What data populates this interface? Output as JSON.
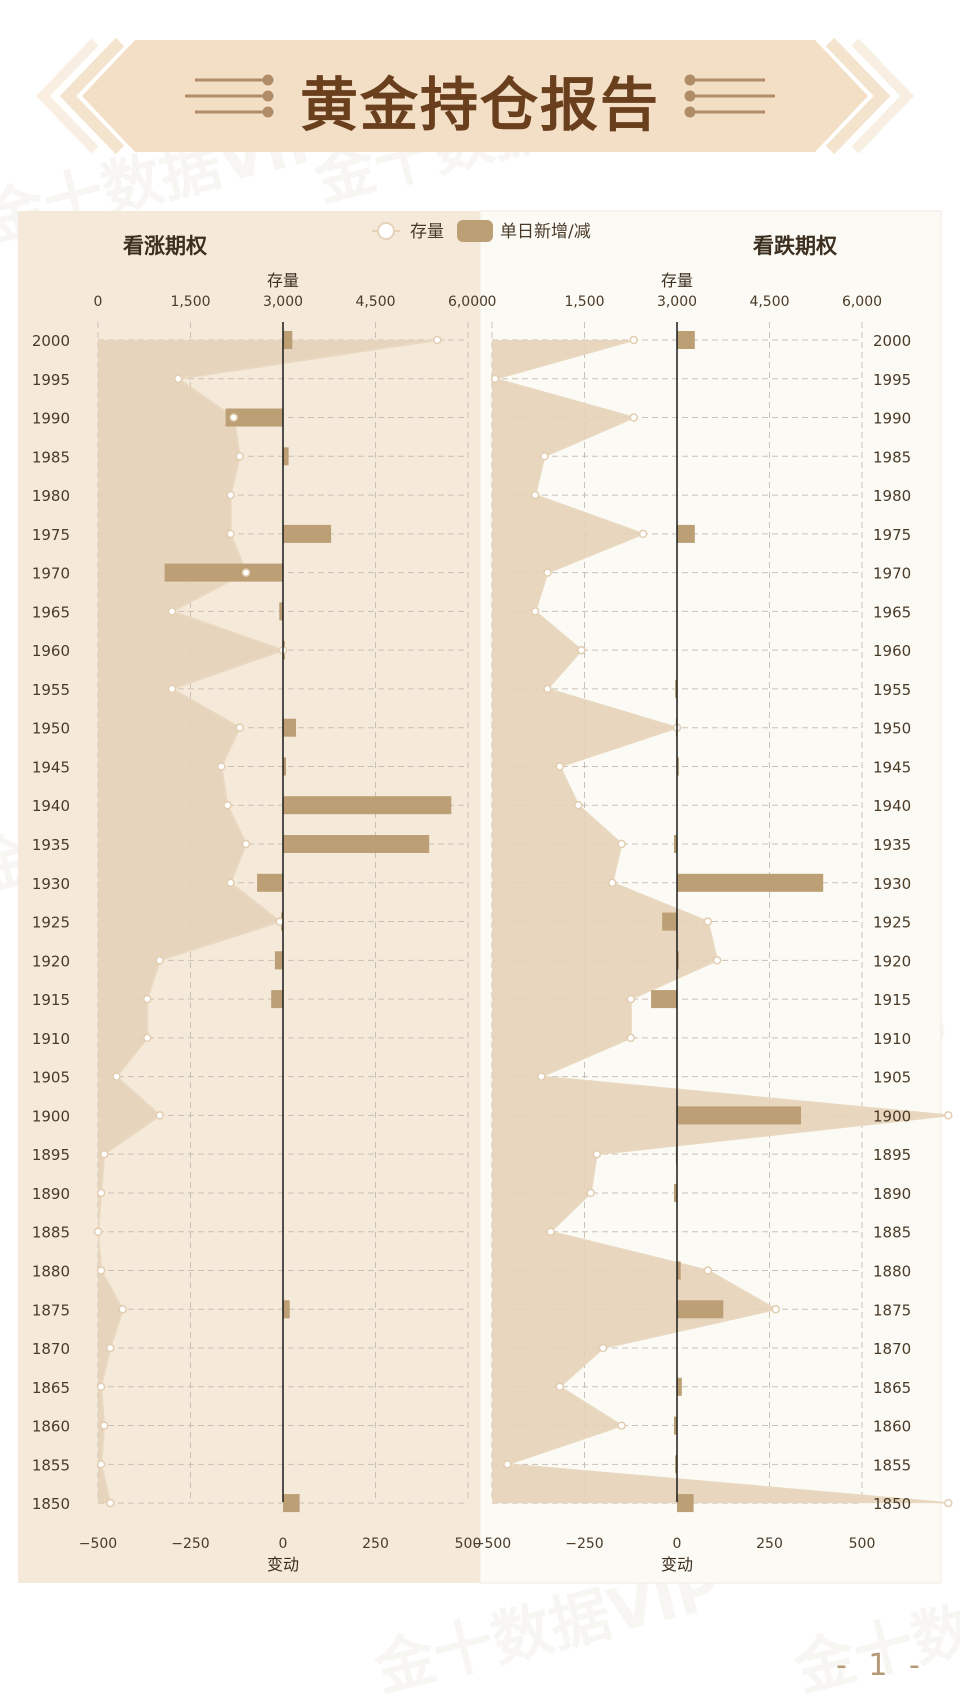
{
  "banner": {
    "title": "黄金持仓报告"
  },
  "legend": {
    "line_label": "存量",
    "bar_label": "单日新增/减"
  },
  "page_number": "- 1 -",
  "watermark": "金十数据VIP",
  "colors": {
    "left_panel_bg": "#f5e9da",
    "right_panel_bg": "#fbfaf4",
    "area_fill": "#e6d2b8",
    "area_line": "#e9d8c0",
    "bar": "#bc9f75",
    "title_text": "#6a3f1d",
    "banner_bg": "#f2dfc6"
  },
  "chart_data": [
    {
      "type": "bar",
      "title": "看涨期权",
      "top_axis_label": "存量",
      "bottom_axis_label": "变动",
      "stock_range": [
        0,
        6000
      ],
      "stock_ticks": [
        "0",
        "1,500",
        "3,000",
        "4,500",
        "6,000"
      ],
      "change_range": [
        -500,
        500
      ],
      "change_ticks": [
        "−500",
        "−250",
        "0",
        "250",
        "500"
      ],
      "categories": [
        "2000",
        "1995",
        "1990",
        "1985",
        "1980",
        "1975",
        "1970",
        "1965",
        "1960",
        "1955",
        "1950",
        "1945",
        "1940",
        "1935",
        "1930",
        "1925",
        "1920",
        "1915",
        "1910",
        "1905",
        "1900",
        "1895",
        "1890",
        "1885",
        "1880",
        "1875",
        "1870",
        "1865",
        "1860",
        "1855",
        "1850"
      ],
      "series": [
        {
          "name": "存量",
          "values": [
            5500,
            1300,
            2200,
            2300,
            2150,
            2150,
            2400,
            1200,
            3000,
            1200,
            2300,
            2000,
            2100,
            2400,
            2150,
            2950,
            1000,
            800,
            800,
            300,
            1000,
            100,
            50,
            0,
            50,
            400,
            200,
            50,
            100,
            50,
            200
          ]
        },
        {
          "name": "单日新增/减",
          "values": [
            25,
            0,
            -155,
            15,
            0,
            130,
            -320,
            -10,
            5,
            0,
            35,
            8,
            455,
            395,
            -70,
            -5,
            -22,
            -32,
            0,
            0,
            0,
            0,
            0,
            0,
            0,
            18,
            0,
            0,
            0,
            0,
            45
          ]
        }
      ]
    },
    {
      "type": "bar",
      "title": "看跌期权",
      "top_axis_label": "存量",
      "bottom_axis_label": "变动",
      "stock_range": [
        0,
        6000
      ],
      "stock_ticks": [
        "0",
        "1,500",
        "3,000",
        "4,500",
        "6,000"
      ],
      "change_range": [
        -500,
        500
      ],
      "change_ticks": [
        "−500",
        "−250",
        "0",
        "250",
        "500"
      ],
      "categories": [
        "2000",
        "1995",
        "1990",
        "1985",
        "1980",
        "1975",
        "1970",
        "1965",
        "1960",
        "1955",
        "1950",
        "1945",
        "1940",
        "1935",
        "1930",
        "1925",
        "1920",
        "1915",
        "1910",
        "1905",
        "1900",
        "1895",
        "1890",
        "1885",
        "1880",
        "1875",
        "1870",
        "1865",
        "1860",
        "1855",
        "1850"
      ],
      "series": [
        {
          "name": "存量",
          "values": [
            2300,
            50,
            2300,
            850,
            700,
            2450,
            900,
            700,
            1450,
            900,
            3000,
            1100,
            1400,
            2100,
            1950,
            3500,
            3650,
            2250,
            2250,
            800,
            7400,
            1700,
            1600,
            950,
            3500,
            4600,
            1800,
            1100,
            2100,
            250,
            7400
          ]
        },
        {
          "name": "单日新增/减",
          "values": [
            48,
            0,
            0,
            0,
            0,
            48,
            0,
            0,
            0,
            -5,
            -3,
            5,
            0,
            -8,
            395,
            -40,
            5,
            -70,
            0,
            0,
            335,
            -3,
            -8,
            0,
            10,
            125,
            0,
            13,
            -8,
            -5,
            45
          ]
        }
      ]
    }
  ]
}
